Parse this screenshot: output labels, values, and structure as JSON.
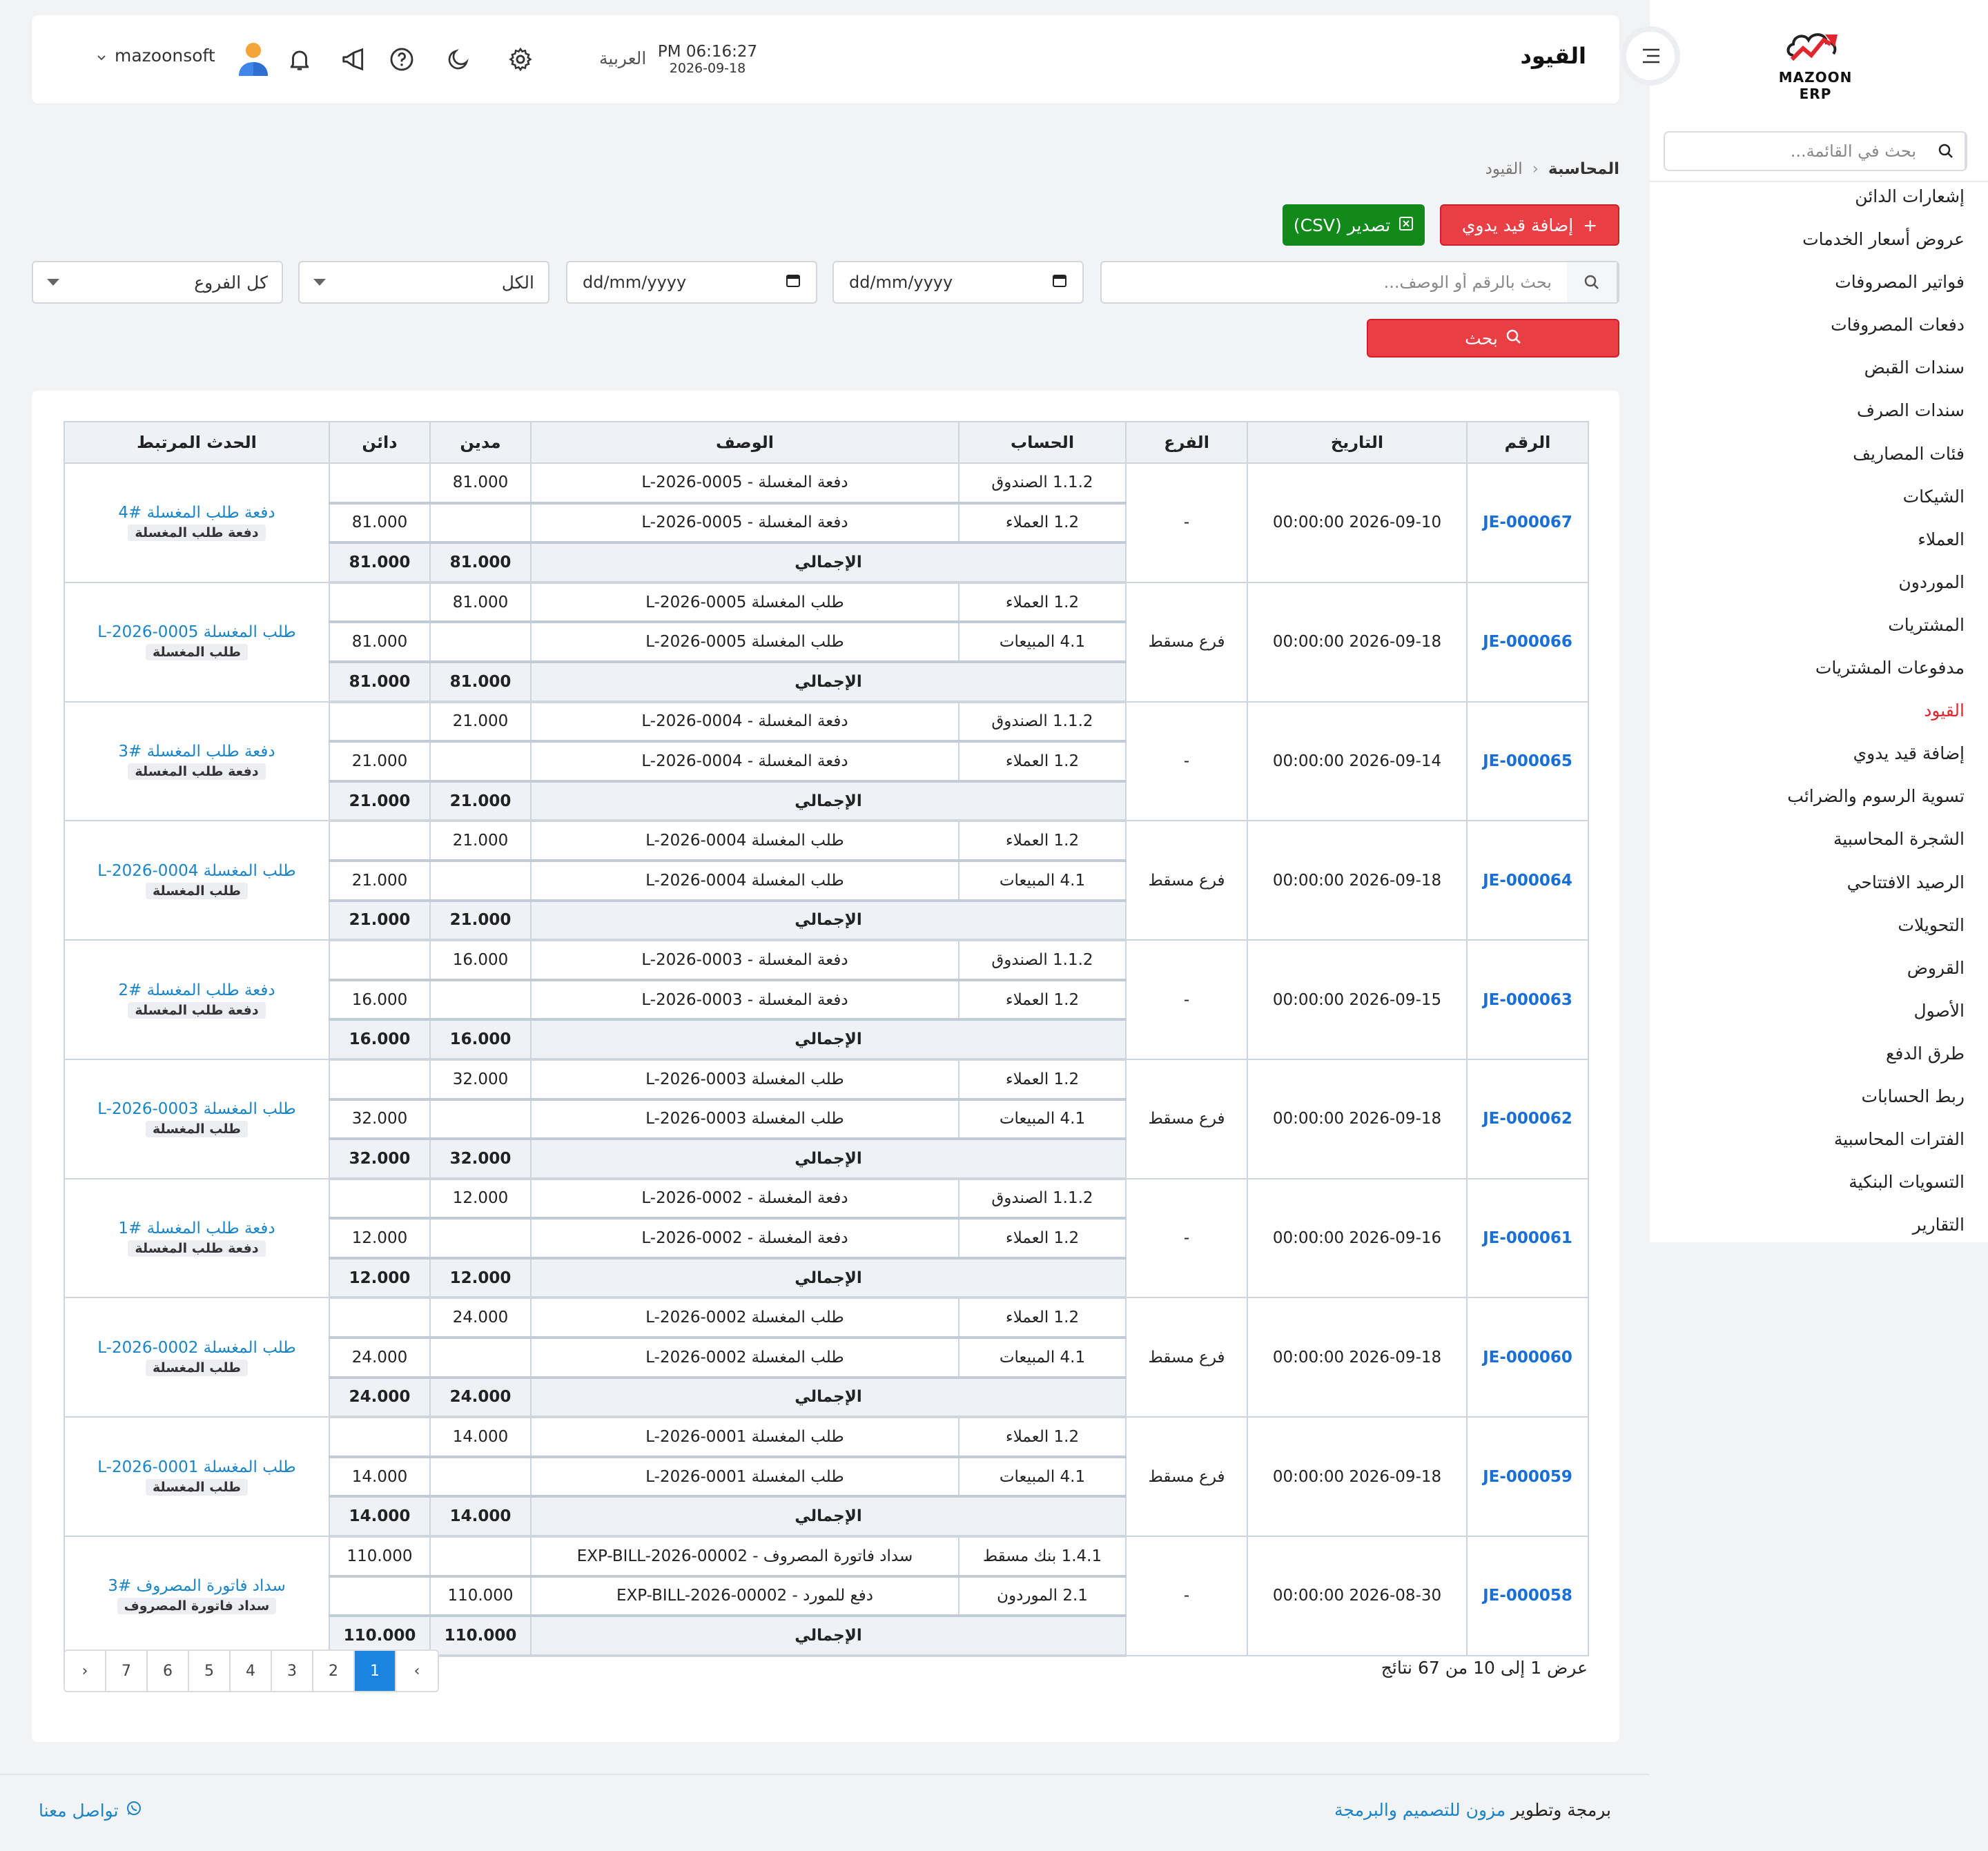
{
  "app": {
    "logo_text": "MAZOON ERP",
    "page_title": "القيود",
    "clock_time": "PM 06:16:27",
    "clock_date": "2026-09-18",
    "language": "العربية",
    "username": "mazoonsoft"
  },
  "sidebar": {
    "search_placeholder": "بحث في القائمة...",
    "items": [
      {
        "label": "إشعارات الدائن"
      },
      {
        "label": "عروض أسعار الخدمات"
      },
      {
        "label": "فواتير المصروفات"
      },
      {
        "label": "دفعات المصروفات"
      },
      {
        "label": "سندات القبض"
      },
      {
        "label": "سندات الصرف"
      },
      {
        "label": "فئات المصاريف"
      },
      {
        "label": "الشيكات"
      },
      {
        "label": "العملاء"
      },
      {
        "label": "الموردون"
      },
      {
        "label": "المشتريات"
      },
      {
        "label": "مدفوعات المشتريات"
      },
      {
        "label": "القيود",
        "active": true
      },
      {
        "label": "إضافة قيد يدوي"
      },
      {
        "label": "تسوية الرسوم والضرائب"
      },
      {
        "label": "الشجرة المحاسبية"
      },
      {
        "label": "الرصيد الافتتاحي"
      },
      {
        "label": "التحويلات"
      },
      {
        "label": "القروض"
      },
      {
        "label": "الأصول"
      },
      {
        "label": "طرق الدفع"
      },
      {
        "label": "ربط الحسابات"
      },
      {
        "label": "الفترات المحاسبية"
      },
      {
        "label": "التسويات البنكية"
      },
      {
        "label": "التقارير"
      }
    ]
  },
  "breadcrumb": {
    "parent": "المحاسبة",
    "current": "القيود"
  },
  "actions": {
    "add_manual": "إضافة قيد يدوي",
    "export_csv": "تصدير (CSV)"
  },
  "filters": {
    "search_placeholder": "بحث بالرقم أو الوصف...",
    "date_from": "dd/mm/yyyy",
    "date_to": "dd/mm/yyyy",
    "type_select": "الكل",
    "branch_select": "كل الفروع",
    "search_button": "بحث"
  },
  "table": {
    "headers": [
      "الرقم",
      "التاريخ",
      "الفرع",
      "الحساب",
      "الوصف",
      "مدين",
      "دائن",
      "الحدث المرتبط"
    ],
    "total_label": "الإجمالي",
    "entries": [
      {
        "no": "JE-000067",
        "date": "2026-09-10 00:00:00",
        "branch": "-",
        "rel_link": "دفعة طلب المغسلة #4",
        "rel_badge": "دفعة طلب المغسلة",
        "lines": [
          {
            "account": "1.1.2 الصندوق",
            "desc": "دفعة المغسلة - L-2026-0005",
            "debit": "81.000",
            "credit": ""
          },
          {
            "account": "1.2 العملاء",
            "desc": "دفعة المغسلة - L-2026-0005",
            "debit": "",
            "credit": "81.000"
          }
        ],
        "total_debit": "81.000",
        "total_credit": "81.000"
      },
      {
        "no": "JE-000066",
        "date": "2026-09-18 00:00:00",
        "branch": "فرع مسقط",
        "rel_link": "طلب المغسلة L-2026-0005",
        "rel_badge": "طلب المغسلة",
        "lines": [
          {
            "account": "1.2 العملاء",
            "desc": "طلب المغسلة L-2026-0005",
            "debit": "81.000",
            "credit": ""
          },
          {
            "account": "4.1 المبيعات",
            "desc": "طلب المغسلة L-2026-0005",
            "debit": "",
            "credit": "81.000"
          }
        ],
        "total_debit": "81.000",
        "total_credit": "81.000"
      },
      {
        "no": "JE-000065",
        "date": "2026-09-14 00:00:00",
        "branch": "-",
        "rel_link": "دفعة طلب المغسلة #3",
        "rel_badge": "دفعة طلب المغسلة",
        "lines": [
          {
            "account": "1.1.2 الصندوق",
            "desc": "دفعة المغسلة - L-2026-0004",
            "debit": "21.000",
            "credit": ""
          },
          {
            "account": "1.2 العملاء",
            "desc": "دفعة المغسلة - L-2026-0004",
            "debit": "",
            "credit": "21.000"
          }
        ],
        "total_debit": "21.000",
        "total_credit": "21.000"
      },
      {
        "no": "JE-000064",
        "date": "2026-09-18 00:00:00",
        "branch": "فرع مسقط",
        "rel_link": "طلب المغسلة L-2026-0004",
        "rel_badge": "طلب المغسلة",
        "lines": [
          {
            "account": "1.2 العملاء",
            "desc": "طلب المغسلة L-2026-0004",
            "debit": "21.000",
            "credit": ""
          },
          {
            "account": "4.1 المبيعات",
            "desc": "طلب المغسلة L-2026-0004",
            "debit": "",
            "credit": "21.000"
          }
        ],
        "total_debit": "21.000",
        "total_credit": "21.000"
      },
      {
        "no": "JE-000063",
        "date": "2026-09-15 00:00:00",
        "branch": "-",
        "rel_link": "دفعة طلب المغسلة #2",
        "rel_badge": "دفعة طلب المغسلة",
        "lines": [
          {
            "account": "1.1.2 الصندوق",
            "desc": "دفعة المغسلة - L-2026-0003",
            "debit": "16.000",
            "credit": ""
          },
          {
            "account": "1.2 العملاء",
            "desc": "دفعة المغسلة - L-2026-0003",
            "debit": "",
            "credit": "16.000"
          }
        ],
        "total_debit": "16.000",
        "total_credit": "16.000"
      },
      {
        "no": "JE-000062",
        "date": "2026-09-18 00:00:00",
        "branch": "فرع مسقط",
        "rel_link": "طلب المغسلة L-2026-0003",
        "rel_badge": "طلب المغسلة",
        "lines": [
          {
            "account": "1.2 العملاء",
            "desc": "طلب المغسلة L-2026-0003",
            "debit": "32.000",
            "credit": ""
          },
          {
            "account": "4.1 المبيعات",
            "desc": "طلب المغسلة L-2026-0003",
            "debit": "",
            "credit": "32.000"
          }
        ],
        "total_debit": "32.000",
        "total_credit": "32.000"
      },
      {
        "no": "JE-000061",
        "date": "2026-09-16 00:00:00",
        "branch": "-",
        "rel_link": "دفعة طلب المغسلة #1",
        "rel_badge": "دفعة طلب المغسلة",
        "lines": [
          {
            "account": "1.1.2 الصندوق",
            "desc": "دفعة المغسلة - L-2026-0002",
            "debit": "12.000",
            "credit": ""
          },
          {
            "account": "1.2 العملاء",
            "desc": "دفعة المغسلة - L-2026-0002",
            "debit": "",
            "credit": "12.000"
          }
        ],
        "total_debit": "12.000",
        "total_credit": "12.000"
      },
      {
        "no": "JE-000060",
        "date": "2026-09-18 00:00:00",
        "branch": "فرع مسقط",
        "rel_link": "طلب المغسلة L-2026-0002",
        "rel_badge": "طلب المغسلة",
        "lines": [
          {
            "account": "1.2 العملاء",
            "desc": "طلب المغسلة L-2026-0002",
            "debit": "24.000",
            "credit": ""
          },
          {
            "account": "4.1 المبيعات",
            "desc": "طلب المغسلة L-2026-0002",
            "debit": "",
            "credit": "24.000"
          }
        ],
        "total_debit": "24.000",
        "total_credit": "24.000"
      },
      {
        "no": "JE-000059",
        "date": "2026-09-18 00:00:00",
        "branch": "فرع مسقط",
        "rel_link": "طلب المغسلة L-2026-0001",
        "rel_badge": "طلب المغسلة",
        "lines": [
          {
            "account": "1.2 العملاء",
            "desc": "طلب المغسلة L-2026-0001",
            "debit": "14.000",
            "credit": ""
          },
          {
            "account": "4.1 المبيعات",
            "desc": "طلب المغسلة L-2026-0001",
            "debit": "",
            "credit": "14.000"
          }
        ],
        "total_debit": "14.000",
        "total_credit": "14.000"
      },
      {
        "no": "JE-000058",
        "date": "2026-08-30 00:00:00",
        "branch": "-",
        "rel_link": "سداد فاتورة المصروف #3",
        "rel_badge": "سداد فاتورة المصروف",
        "lines": [
          {
            "account": "1.4.1 بنك مسقط",
            "desc": "سداد فاتورة المصروف - EXP-BILL-2026-00002",
            "debit": "",
            "credit": "110.000"
          },
          {
            "account": "2.1 الموردون",
            "desc": "دفع للمورد - EXP-BILL-2026-00002",
            "debit": "110.000",
            "credit": ""
          }
        ],
        "total_debit": "110.000",
        "total_credit": "110.000"
      }
    ]
  },
  "pagination": {
    "prev": "‹",
    "pages": [
      "1",
      "2",
      "3",
      "4",
      "5",
      "6",
      "7"
    ],
    "active": "1",
    "next": "›",
    "summary": "عرض 1 إلى 10 من 67 نتائج"
  },
  "footer": {
    "credit_prefix": "برمجة وتطوير",
    "credit_brand": "مزون للتصميم والبرمجة",
    "contact": "تواصل معنا"
  },
  "colors": {
    "accent_red": "#e83e44",
    "export_green": "#118a1b",
    "link_blue": "#1a84c7",
    "active_page": "#1a84e0"
  }
}
